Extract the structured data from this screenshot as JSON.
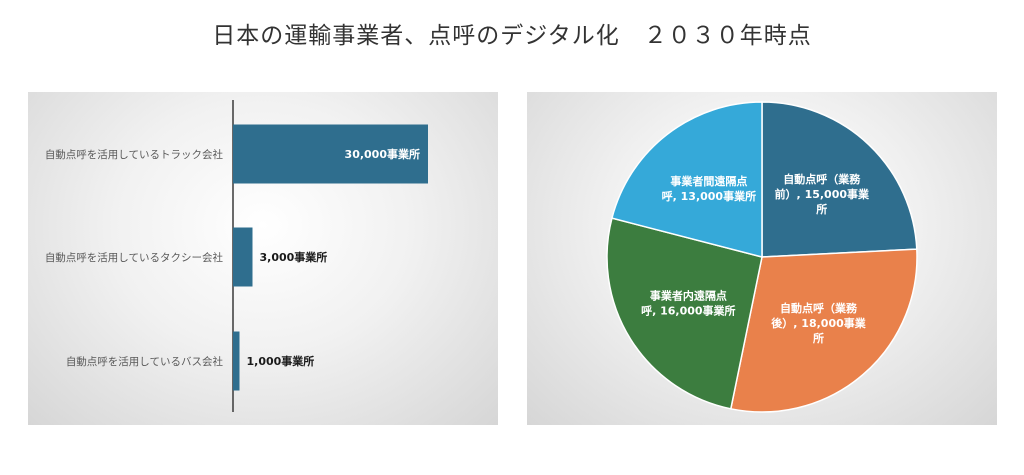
{
  "title": "日本の運輸事業者、点呼のデジタル化　２０３０年時点",
  "colors": {
    "bar": "#2f6e8e",
    "slices": [
      "#2f6e8e",
      "#e9814b",
      "#3c7d3f",
      "#35a9d9"
    ]
  },
  "chart_data": [
    {
      "type": "bar",
      "orientation": "horizontal",
      "categories": [
        "自動点呼を活用しているトラック会社",
        "自動点呼を活用しているタクシー会社",
        "自動点呼を活用しているバス会社"
      ],
      "values": [
        30000,
        3000,
        1000
      ],
      "data_labels": [
        "30,000事業所",
        "3,000事業所",
        "1,000事業所"
      ],
      "xlim": [
        0,
        40000
      ],
      "grid": false
    },
    {
      "type": "pie",
      "slices": [
        {
          "label": [
            "自動点呼（業務",
            "前）, 15,000事業",
            "所"
          ],
          "value": 15000
        },
        {
          "label": [
            "自動点呼（業務",
            "後）, 18,000事業",
            "所"
          ],
          "value": 18000
        },
        {
          "label": [
            "事業者内遠隔点",
            "呼, 16,000事業所"
          ],
          "value": 16000
        },
        {
          "label": [
            "事業者間遠隔点",
            "呼, 13,000事業所"
          ],
          "value": 13000
        }
      ],
      "start_angle_deg": 0,
      "direction": "clockwise"
    }
  ]
}
